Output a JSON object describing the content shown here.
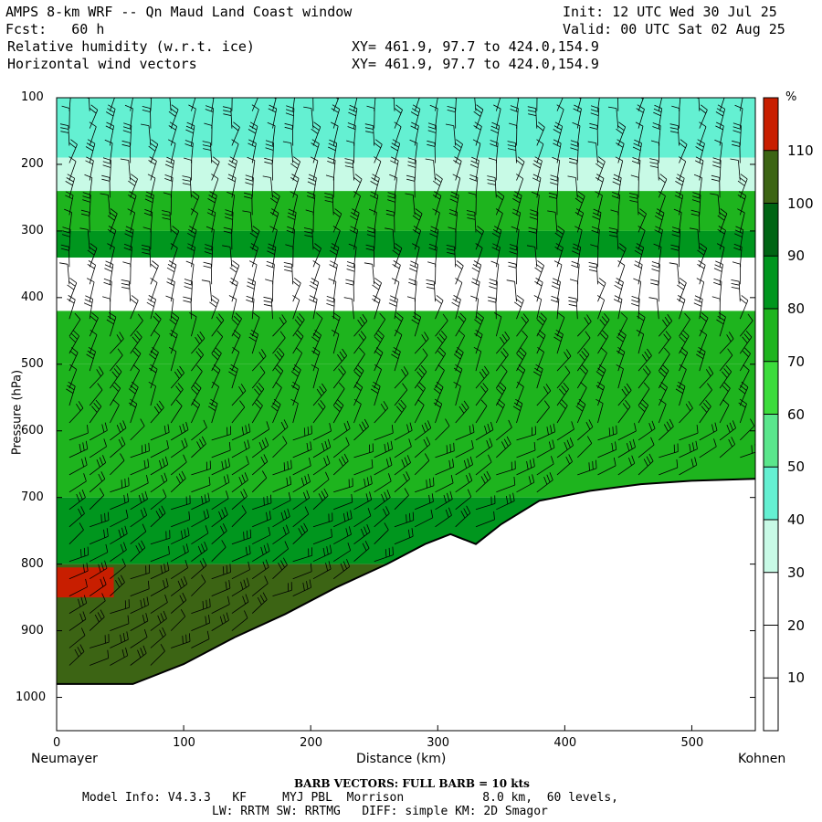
{
  "header": {
    "title": "AMPS 8-km WRF -- Qn Maud Land Coast window",
    "init": "Init: 12 UTC Wed 30 Jul 25",
    "fcst": "Fcst:   60 h",
    "valid": "Valid: 00 UTC Sat 02 Aug 25",
    "field1": "Relative humidity (w.r.t. ice)",
    "field2": "Horizontal wind vectors",
    "xy1": "XY= 461.9, 97.7 to 424.0,154.9",
    "xy2": "XY= 461.9, 97.7 to 424.0,154.9"
  },
  "axes": {
    "ylabel": "Pressure (hPa)",
    "xlabel": "Distance (km)",
    "left_end": "Neumayer",
    "right_end": "Kohnen"
  },
  "colorbar": {
    "unit": "%",
    "levels": [
      10,
      20,
      30,
      40,
      50,
      60,
      70,
      80,
      90,
      100,
      110
    ],
    "colors": [
      "#ffffff",
      "#ffffff",
      "#c8fae6",
      "#64f0d2",
      "#5ae68c",
      "#3cdc3c",
      "#1eb41e",
      "#00961e",
      "#006414",
      "#3c6414",
      "#c81e00"
    ]
  },
  "footer": {
    "barb_note": "BARB VECTORS:  FULL BARB = 10 kts",
    "line1": "Model Info: V4.3.3   KF     MYJ PBL  Morrison           8.0 km,  60 levels,",
    "line2": "LW: RRTM SW: RRTMG   DIFF: simple KM: 2D Smagor"
  },
  "chart_data": {
    "type": "heatmap",
    "title": "Relative humidity (w.r.t. ice)",
    "xlabel": "Distance (km)",
    "ylabel": "Pressure (hPa)",
    "xlim": [
      0,
      550
    ],
    "ylim": [
      1050,
      100
    ],
    "xticks": [
      0,
      100,
      200,
      300,
      400,
      500
    ],
    "yticks": [
      100,
      200,
      300,
      400,
      500,
      600,
      700,
      800,
      900,
      1000
    ],
    "terrain_surface": {
      "x_km": [
        0,
        60,
        100,
        140,
        180,
        220,
        260,
        290,
        310,
        330,
        350,
        380,
        420,
        460,
        500,
        550
      ],
      "p_hpa": [
        980,
        980,
        950,
        910,
        875,
        835,
        800,
        770,
        755,
        770,
        740,
        705,
        690,
        680,
        675,
        672
      ]
    },
    "rh_bands": [
      {
        "p_top": 100,
        "p_bottom": 190,
        "rh": 40
      },
      {
        "p_top": 190,
        "p_bottom": 240,
        "rh": 30
      },
      {
        "p_top": 240,
        "p_bottom": 300,
        "rh": 70
      },
      {
        "p_top": 300,
        "p_bottom": 340,
        "rh": 80
      },
      {
        "p_top": 340,
        "p_bottom": 420,
        "rh": 20
      },
      {
        "p_top": 420,
        "p_bottom": 500,
        "rh": 70
      },
      {
        "p_top": 500,
        "p_bottom": 700,
        "rh": 70
      },
      {
        "p_top": 700,
        "p_bottom": 800,
        "rh": 80
      },
      {
        "p_top": 800,
        "p_bottom": 1000,
        "rh": 100
      }
    ],
    "rh_max_region": {
      "x_km": [
        0,
        45
      ],
      "p_hpa": [
        805,
        850
      ],
      "rh": 110
    }
  }
}
